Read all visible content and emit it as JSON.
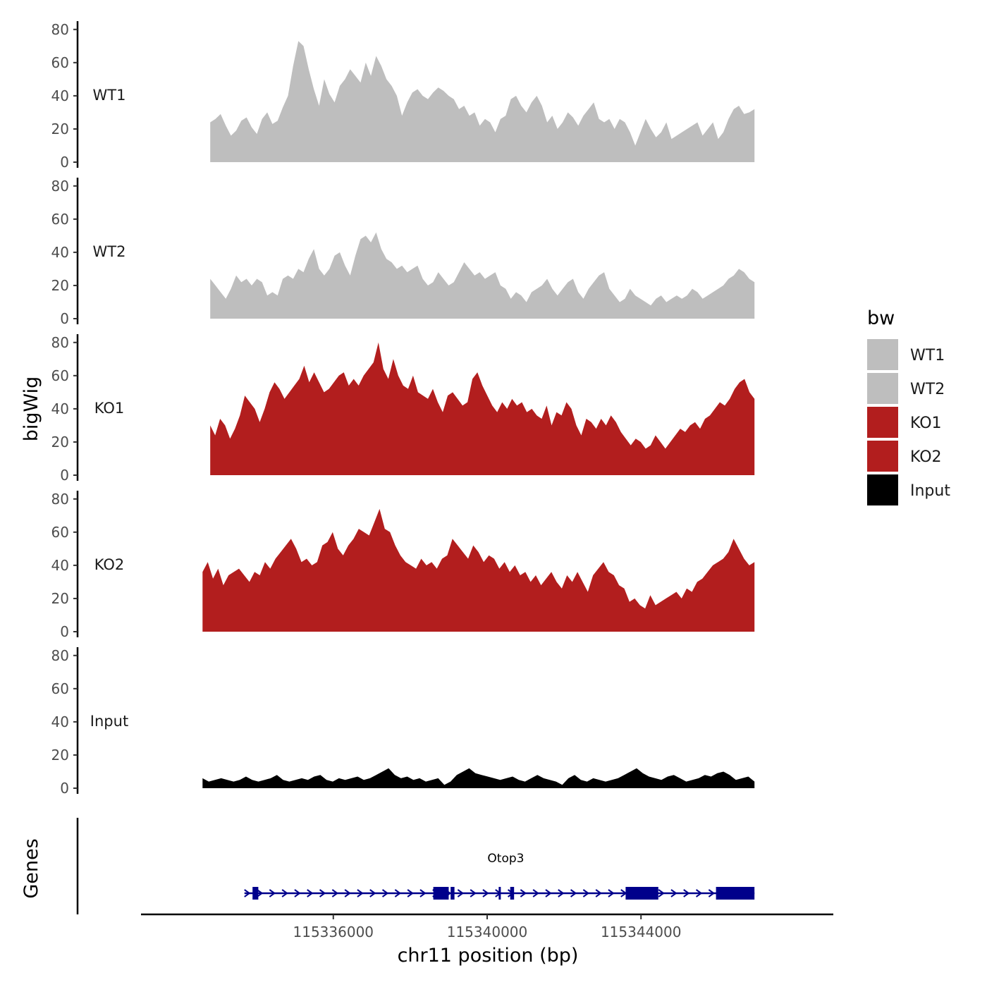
{
  "chart_data": {
    "type": "area",
    "y_axis_title": "bigWig",
    "genes_axis_title": "Genes",
    "x_axis_title": "chr11 position (bp)",
    "x_range": [
      115331000,
      115349000
    ],
    "x_ticks": [
      115336000,
      115340000,
      115344000
    ],
    "x_tick_labels": [
      "115336000",
      "115340000",
      "115344000"
    ],
    "y_range": [
      0,
      85
    ],
    "y_ticks": [
      0,
      20,
      40,
      60,
      80
    ],
    "y_tick_labels": [
      "0",
      "20",
      "40",
      "60",
      "80"
    ],
    "legend": {
      "title": "bw",
      "position": "right",
      "entries": [
        {
          "label": "WT1",
          "color": "#bebebe"
        },
        {
          "label": "WT2",
          "color": "#bebebe"
        },
        {
          "label": "KO1",
          "color": "#b21e1e"
        },
        {
          "label": "KO2",
          "color": "#b21e1e"
        },
        {
          "label": "Input",
          "color": "#000000"
        }
      ]
    },
    "tracks": [
      {
        "name": "WT1",
        "color": "#bebebe",
        "x_start": 115332800,
        "x_end": 115346950,
        "values": [
          24,
          26,
          29,
          22,
          16,
          19,
          25,
          27,
          21,
          17,
          26,
          30,
          23,
          25,
          33,
          40,
          58,
          73,
          70,
          56,
          44,
          34,
          50,
          41,
          36,
          46,
          50,
          56,
          52,
          48,
          60,
          52,
          64,
          58,
          50,
          46,
          40,
          28,
          36,
          42,
          44,
          40,
          38,
          42,
          45,
          43,
          40,
          38,
          32,
          34,
          28,
          30,
          22,
          26,
          24,
          18,
          26,
          28,
          38,
          40,
          34,
          30,
          36,
          40,
          34,
          24,
          28,
          20,
          24,
          30,
          27,
          22,
          28,
          32,
          36,
          26,
          24,
          26,
          20,
          26,
          24,
          18,
          10,
          18,
          26,
          20,
          15,
          18,
          24,
          14,
          16,
          18,
          20,
          22,
          24,
          16,
          20,
          24,
          14,
          18,
          26,
          32,
          34,
          29,
          30,
          32
        ]
      },
      {
        "name": "WT2",
        "color": "#bebebe",
        "x_start": 115332800,
        "x_end": 115346950,
        "values": [
          24,
          20,
          16,
          12,
          18,
          26,
          22,
          24,
          20,
          24,
          22,
          14,
          16,
          14,
          24,
          26,
          24,
          30,
          28,
          36,
          42,
          30,
          26,
          30,
          38,
          40,
          32,
          26,
          38,
          48,
          50,
          46,
          52,
          42,
          36,
          34,
          30,
          32,
          28,
          30,
          32,
          24,
          20,
          22,
          28,
          24,
          20,
          22,
          28,
          34,
          30,
          26,
          28,
          24,
          26,
          28,
          20,
          18,
          12,
          16,
          14,
          10,
          16,
          18,
          20,
          24,
          18,
          14,
          18,
          22,
          24,
          16,
          12,
          18,
          22,
          26,
          28,
          18,
          14,
          10,
          12,
          18,
          14,
          12,
          10,
          8,
          12,
          14,
          10,
          12,
          14,
          12,
          14,
          18,
          16,
          12,
          14,
          16,
          18,
          20,
          24,
          26,
          30,
          28,
          24,
          22
        ]
      },
      {
        "name": "KO1",
        "color": "#b21e1e",
        "x_start": 115332800,
        "x_end": 115346950,
        "values": [
          30,
          24,
          34,
          30,
          22,
          28,
          36,
          48,
          44,
          40,
          32,
          40,
          50,
          56,
          52,
          46,
          50,
          54,
          58,
          66,
          56,
          62,
          56,
          50,
          52,
          56,
          60,
          62,
          54,
          58,
          54,
          60,
          64,
          68,
          80,
          64,
          58,
          70,
          60,
          54,
          52,
          60,
          50,
          48,
          46,
          52,
          44,
          38,
          48,
          50,
          46,
          42,
          44,
          58,
          62,
          54,
          48,
          42,
          38,
          44,
          40,
          46,
          42,
          44,
          38,
          40,
          36,
          34,
          42,
          30,
          38,
          36,
          44,
          40,
          30,
          24,
          34,
          32,
          28,
          34,
          30,
          36,
          32,
          26,
          22,
          18,
          22,
          20,
          16,
          18,
          24,
          20,
          16,
          20,
          24,
          28,
          26,
          30,
          32,
          28,
          34,
          36,
          40,
          44,
          42,
          46,
          52,
          56,
          58,
          50,
          46
        ]
      },
      {
        "name": "KO2",
        "color": "#b21e1e",
        "x_start": 115332600,
        "x_end": 115346950,
        "values": [
          36,
          42,
          32,
          38,
          28,
          34,
          36,
          38,
          34,
          30,
          36,
          34,
          42,
          38,
          44,
          48,
          52,
          56,
          50,
          42,
          44,
          40,
          42,
          52,
          54,
          60,
          50,
          46,
          52,
          56,
          62,
          60,
          58,
          66,
          74,
          62,
          60,
          52,
          46,
          42,
          40,
          38,
          44,
          40,
          42,
          38,
          44,
          46,
          56,
          52,
          48,
          44,
          52,
          48,
          42,
          46,
          44,
          38,
          42,
          36,
          40,
          34,
          36,
          30,
          34,
          28,
          32,
          36,
          30,
          26,
          34,
          30,
          36,
          30,
          24,
          34,
          38,
          42,
          36,
          34,
          28,
          26,
          18,
          20,
          16,
          14,
          22,
          16,
          18,
          20,
          22,
          24,
          20,
          26,
          24,
          30,
          32,
          36,
          40,
          42,
          44,
          48,
          56,
          50,
          44,
          40,
          42
        ]
      },
      {
        "name": "Input",
        "color": "#000000",
        "x_start": 115332600,
        "x_end": 115346950,
        "values": [
          6,
          4,
          5,
          6,
          5,
          4,
          5,
          7,
          5,
          4,
          5,
          6,
          8,
          5,
          4,
          5,
          6,
          5,
          7,
          8,
          5,
          4,
          6,
          5,
          6,
          7,
          5,
          6,
          8,
          10,
          12,
          8,
          6,
          7,
          5,
          6,
          4,
          5,
          6,
          2,
          4,
          8,
          10,
          12,
          9,
          8,
          7,
          6,
          5,
          6,
          7,
          5,
          4,
          6,
          8,
          6,
          5,
          4,
          2,
          6,
          8,
          5,
          4,
          6,
          5,
          4,
          5,
          6,
          8,
          10,
          12,
          9,
          7,
          6,
          5,
          7,
          8,
          6,
          4,
          5,
          6,
          8,
          7,
          9,
          10,
          8,
          5,
          6,
          7,
          4
        ]
      }
    ],
    "genes": [
      {
        "name": "Otop3",
        "strand": "+",
        "color": "#00008b",
        "start": 115333800,
        "end": 115346950,
        "exons": [
          [
            115333900,
            115334050
          ],
          [
            115338600,
            115339000
          ],
          [
            115339050,
            115339150
          ],
          [
            115340300,
            115340350
          ],
          [
            115340600,
            115340700
          ],
          [
            115343600,
            115344450
          ],
          [
            115345950,
            115346950
          ]
        ]
      }
    ]
  }
}
